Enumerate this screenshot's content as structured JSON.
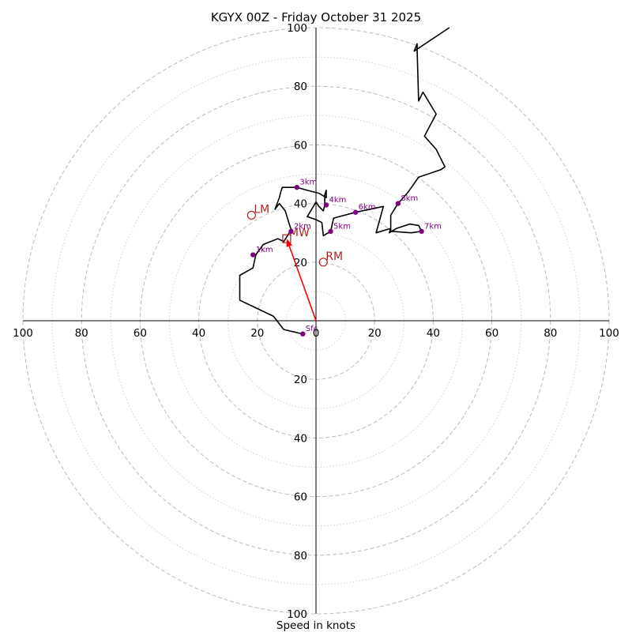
{
  "chart_data": {
    "type": "hodograph",
    "title": "KGYX 00Z - Friday October 31 2025",
    "xlabel": "Speed in knots",
    "units": "knots",
    "ring_max": 100,
    "major_rings": [
      20,
      40,
      60,
      80,
      100
    ],
    "minor_rings": [
      10,
      30,
      50,
      70,
      90
    ],
    "x_tick_labels": [
      "100",
      "80",
      "60",
      "40",
      "20",
      "0",
      "20",
      "40",
      "60",
      "80",
      "100"
    ],
    "y_tick_labels_top": [
      "100",
      "80",
      "60",
      "40",
      "20"
    ],
    "y_tick_labels_bottom": [
      "20",
      "40",
      "60",
      "80",
      "100"
    ],
    "hodograph_trace": [
      [
        -4.5,
        -4.5
      ],
      [
        -11,
        -3
      ],
      [
        -14.5,
        1.5
      ],
      [
        -26,
        7
      ],
      [
        -26,
        15.5
      ],
      [
        -21.5,
        18
      ],
      [
        -20.5,
        22.5
      ],
      [
        -18,
        26
      ],
      [
        -13,
        28
      ],
      [
        -11,
        27
      ],
      [
        -8.5,
        31
      ],
      [
        -10.5,
        37.5
      ],
      [
        -12.5,
        40
      ],
      [
        -14,
        38
      ],
      [
        -12.5,
        42
      ],
      [
        -12,
        44
      ],
      [
        -11.5,
        45.5
      ],
      [
        -6.5,
        45.5
      ],
      [
        -3,
        44.5
      ],
      [
        1,
        43.5
      ],
      [
        3.5,
        42
      ],
      [
        3.5,
        44.5
      ],
      [
        3,
        43
      ],
      [
        3,
        39.5
      ],
      [
        2.5,
        37.5
      ],
      [
        1,
        39
      ],
      [
        0,
        40.5
      ],
      [
        -3,
        35.5
      ],
      [
        0,
        34.5
      ],
      [
        2,
        33.5
      ],
      [
        2.5,
        29
      ],
      [
        5,
        30.5
      ],
      [
        6,
        35
      ],
      [
        13.5,
        37
      ],
      [
        23,
        39
      ],
      [
        20.5,
        30
      ],
      [
        25.5,
        31.5
      ],
      [
        25,
        30
      ],
      [
        27.5,
        31.5
      ],
      [
        32,
        33
      ],
      [
        35,
        32.5
      ],
      [
        36,
        30.5
      ],
      [
        32.5,
        30
      ],
      [
        25.5,
        30.5
      ],
      [
        25.5,
        36
      ],
      [
        28,
        40
      ],
      [
        31.5,
        44
      ],
      [
        35,
        49
      ],
      [
        42.5,
        51.5
      ],
      [
        44,
        52.5
      ],
      [
        41,
        58.5
      ],
      [
        37,
        63
      ],
      [
        41,
        70.5
      ],
      [
        36.5,
        78
      ],
      [
        35,
        75
      ],
      [
        34.5,
        92.5
      ],
      [
        34.5,
        94.5
      ],
      [
        33.5,
        92
      ],
      [
        45.5,
        100
      ]
    ],
    "height_markers": [
      {
        "label": "Sfc",
        "u": -4.5,
        "v": -4.5
      },
      {
        "label": "1km",
        "u": -21.5,
        "v": 22.5
      },
      {
        "label": "2km",
        "u": -8.5,
        "v": 30.5
      },
      {
        "label": "3km",
        "u": -6.5,
        "v": 45.5
      },
      {
        "label": "4km",
        "u": 3.5,
        "v": 39.5
      },
      {
        "label": "5km",
        "u": 5,
        "v": 30.5
      },
      {
        "label": "6km",
        "u": 13.5,
        "v": 37
      },
      {
        "label": "7km",
        "u": 36,
        "v": 30.5
      },
      {
        "label": "8km",
        "u": 28,
        "v": 40
      }
    ],
    "storm_motion": [
      {
        "label": "LM",
        "u": -22,
        "v": 36,
        "marker": "circle"
      },
      {
        "label": "RM",
        "u": 2.5,
        "v": 20,
        "marker": "circle"
      },
      {
        "label": "MW",
        "u": -10,
        "v": 28,
        "marker": "square"
      }
    ],
    "mean_wind_arrow": {
      "from_u": 0,
      "from_v": 0,
      "to_u": -10,
      "to_v": 28
    }
  }
}
